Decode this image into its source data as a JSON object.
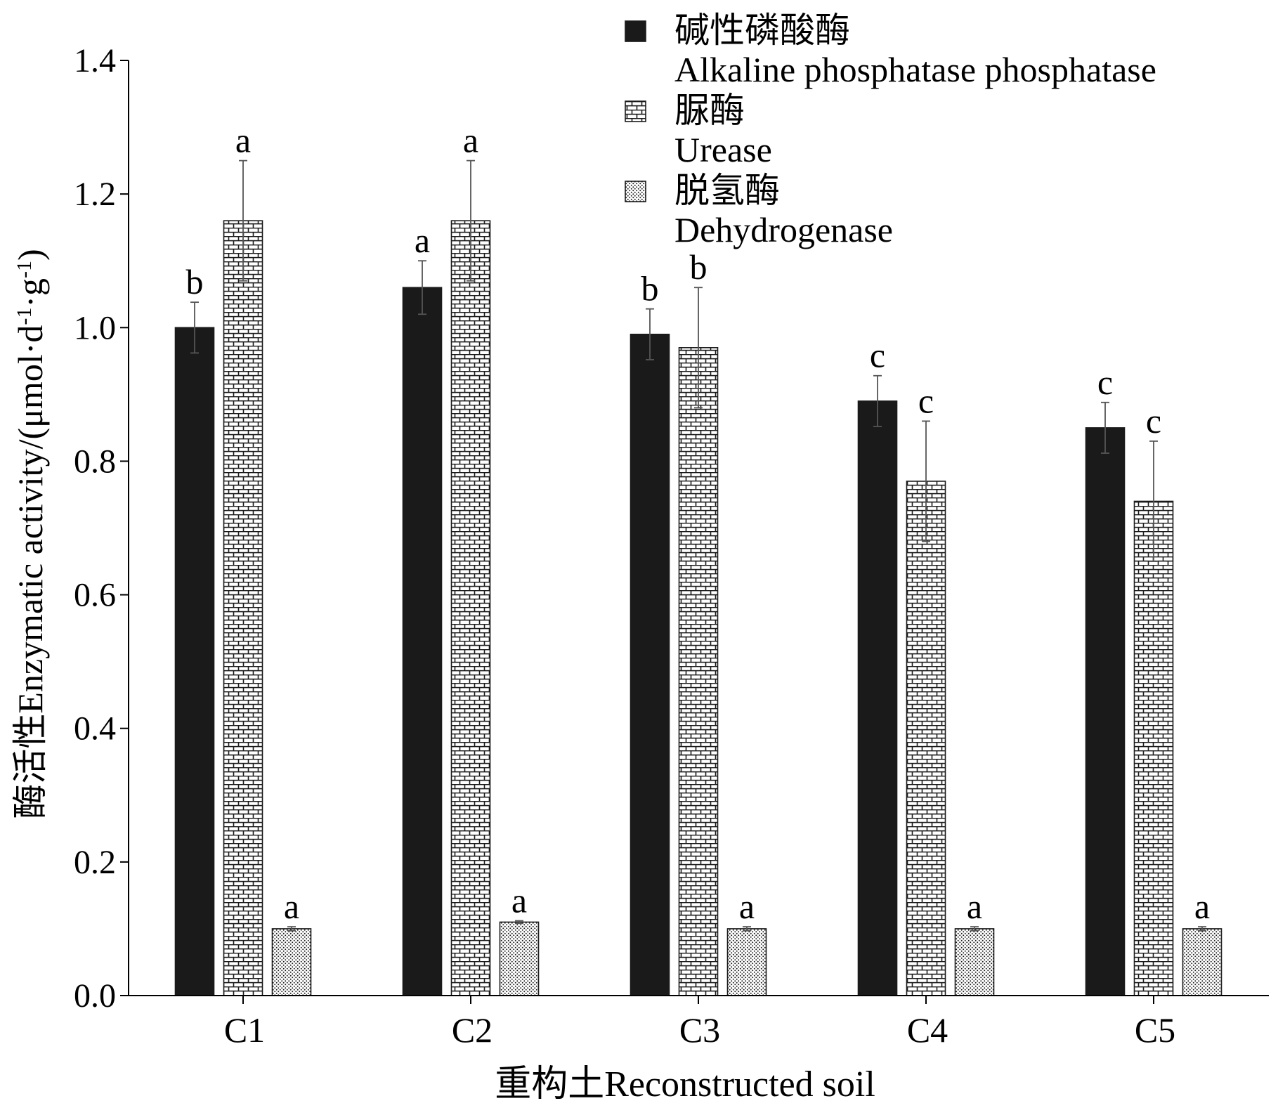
{
  "chart_data": {
    "type": "bar",
    "categories": [
      "C1",
      "C2",
      "C3",
      "C4",
      "C5"
    ],
    "xlabel": "重构土Reconstructed soil",
    "ylabel_parts": [
      "酶活性Enzymatic activity/(μmol·d",
      "-1",
      "·g",
      "-1",
      ")"
    ],
    "ylim": [
      0,
      1.4
    ],
    "yticks": [
      "0.0",
      "0.2",
      "0.4",
      "0.6",
      "0.8",
      "1.0",
      "1.2",
      "1.4"
    ],
    "legend_position": "top-right",
    "series": [
      {
        "key": "alp",
        "name_cn": "碱性磷酸酶",
        "name_en": "Alkaline phosphatase phosphatase",
        "pattern": "solid",
        "color": "#1a1a1a",
        "values": [
          1.0,
          1.06,
          0.99,
          0.89,
          0.85
        ],
        "errors": [
          0.038,
          0.04,
          0.038,
          0.038,
          0.038
        ],
        "letters": [
          "b",
          "a",
          "b",
          "c",
          "c"
        ]
      },
      {
        "key": "ure",
        "name_cn": "脲酶",
        "name_en": "Urease",
        "pattern": "brick",
        "color": "#1a1a1a",
        "values": [
          1.16,
          1.16,
          0.97,
          0.77,
          0.74
        ],
        "errors": [
          0.09,
          0.09,
          0.09,
          0.09,
          0.09
        ],
        "letters": [
          "a",
          "a",
          "b",
          "c",
          "c"
        ]
      },
      {
        "key": "dhg",
        "name_cn": "脱氢酶",
        "name_en": "Dehydrogenase",
        "pattern": "dots",
        "color": "#1a1a1a",
        "values": [
          0.1,
          0.11,
          0.1,
          0.1,
          0.1
        ],
        "errors": [
          0.003,
          0.002,
          0.003,
          0.003,
          0.003
        ],
        "letters": [
          "a",
          "a",
          "a",
          "a",
          "a"
        ]
      }
    ]
  }
}
